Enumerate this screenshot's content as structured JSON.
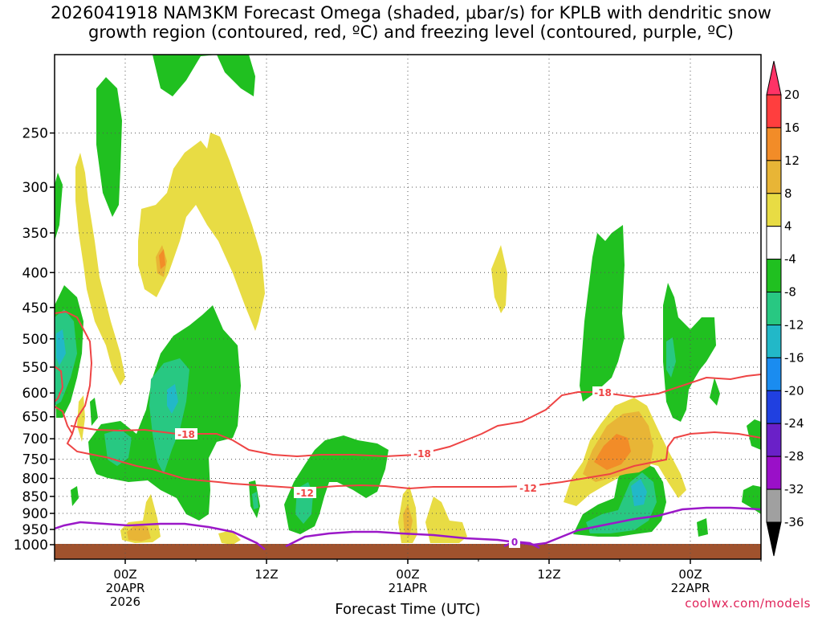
{
  "chart_data": {
    "type": "heatmap",
    "title_line1": "2026041918 NAM3KM Forecast Omega (shaded, μbar/s) for KPLB with dendritic snow",
    "title_line2": "growth region (contoured, red, ºC) and freezing level (contoured, purple, ºC)",
    "xlabel": "Forecast Time (UTC)",
    "ylabel": "",
    "watermark": "coolwx.com/models",
    "x_range_hours": [
      -6,
      54
    ],
    "y_levels": [
      "250",
      "300",
      "350",
      "400",
      "450",
      "500",
      "550",
      "600",
      "650",
      "700",
      "750",
      "800",
      "850",
      "900",
      "950",
      "1000"
    ],
    "x_ticks": [
      {
        "hour": 0,
        "lines": [
          "00Z",
          "20APR",
          "2026"
        ]
      },
      {
        "hour": 12,
        "lines": [
          "12Z"
        ]
      },
      {
        "hour": 24,
        "lines": [
          "00Z",
          "21APR"
        ]
      },
      {
        "hour": 36,
        "lines": [
          "12Z"
        ]
      },
      {
        "hour": 48,
        "lines": [
          "00Z",
          "22APR"
        ]
      }
    ],
    "colorbar": {
      "labels": [
        "20",
        "16",
        "12",
        "8",
        "4",
        "-4",
        "-8",
        "-12",
        "-16",
        "-20",
        "-24",
        "-28",
        "-32",
        "-36"
      ],
      "colors": [
        "#ff3366",
        "#ff3e3e",
        "#f28c28",
        "#e8b536",
        "#e8dc44",
        "#ffffff",
        "#20c020",
        "#28c882",
        "#22b8c8",
        "#1a8cf0",
        "#2040e0",
        "#6a20c8",
        "#9a10c8",
        "#a0a0a0",
        "#000000"
      ]
    },
    "contours": [
      {
        "label": "-18",
        "color": "#ee4444"
      },
      {
        "label": "-12",
        "color": "#ee4444"
      },
      {
        "label": "0",
        "color": "#9b18c8"
      }
    ]
  }
}
